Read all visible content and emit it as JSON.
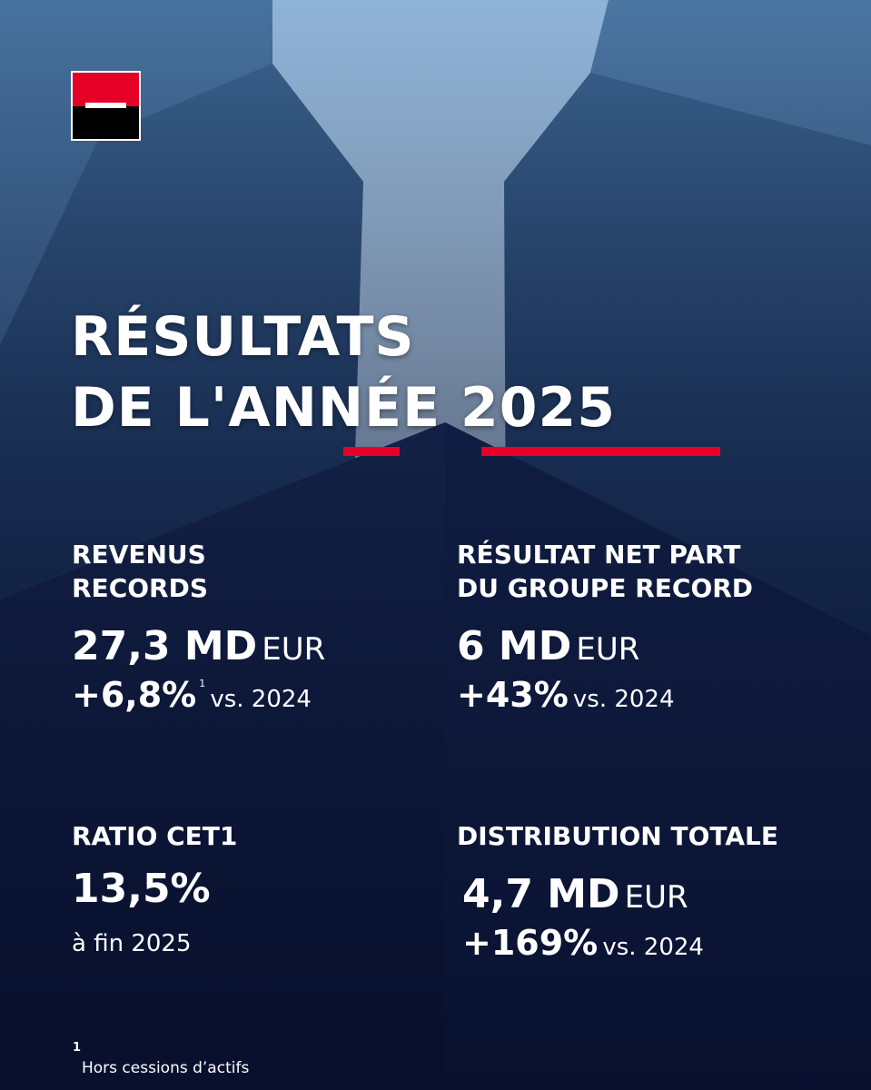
{
  "title": {
    "lines": [
      "RÉSULTATS",
      "DE L'ANNÉE 2025"
    ]
  },
  "stats": [
    {
      "label": [
        "REVENUS",
        "RECORDS"
      ],
      "value": "27,3 MD",
      "unit": "EUR",
      "change": "+6,8%",
      "note": "1",
      "comparison": "vs. 2024"
    },
    {
      "label": [
        "RÉSULTAT NET PART",
        "DU GROUPE RECORD"
      ],
      "value": "6 MD",
      "unit": "EUR",
      "change": "+43%",
      "comparison": "vs. 2024"
    },
    {
      "label": [
        "RATIO CET1"
      ],
      "value": "13,5%",
      "comparison": "à fin 2025"
    },
    {
      "label": [
        "DISTRIBUTION TOTALE"
      ],
      "value": "4,7 MD",
      "unit": "EUR",
      "change": "+169%",
      "comparison": "vs. 2024"
    }
  ],
  "footnote": {
    "marker": "1",
    "text": "Hors cessions d’actifs"
  }
}
